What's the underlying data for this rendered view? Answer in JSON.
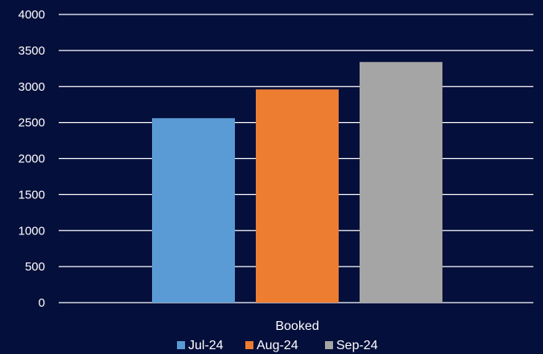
{
  "chart_data": {
    "type": "bar",
    "title": "",
    "xlabel": "",
    "ylabel": "",
    "categories": [
      "Booked"
    ],
    "series": [
      {
        "name": "Jul-24",
        "color": "#5b9bd5",
        "values": [
          2560
        ]
      },
      {
        "name": "Aug-24",
        "color": "#ed7d31",
        "values": [
          2960
        ]
      },
      {
        "name": "Sep-24",
        "color": "#a5a5a5",
        "values": [
          3340
        ]
      }
    ],
    "ylim": [
      0,
      4000
    ],
    "yticks": [
      0,
      500,
      1000,
      1500,
      2000,
      2500,
      3000,
      3500,
      4000
    ],
    "grid": true,
    "legend_position": "bottom",
    "background_color": "#050f3b",
    "text_color": "#ffffff",
    "gridline_color": "#ffffff"
  }
}
